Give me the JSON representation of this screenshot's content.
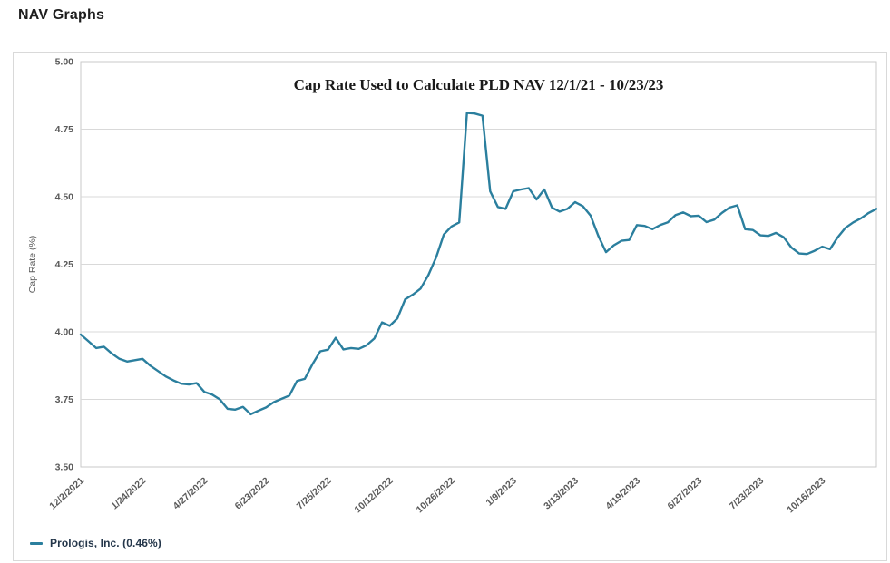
{
  "header": {
    "title": "NAV Graphs"
  },
  "colors": {
    "accent": "#2b7f9e",
    "grid": "#d9d9d9",
    "plot_border": "#c9c9c9",
    "axis_text": "#5a5a5a",
    "title_text": "#1a1a1a",
    "legend_text": "#24364a"
  },
  "chart_data": {
    "type": "line",
    "title": "Cap Rate Used to Calculate PLD NAV 12/1/21 - 10/23/23",
    "xlabel": "",
    "ylabel": "Cap Rate (%)",
    "ylim": [
      3.5,
      5.0
    ],
    "ytick_labels": [
      "5.00",
      "4.75",
      "4.50",
      "4.25",
      "4.00",
      "3.75",
      "3.50"
    ],
    "grid": "horizontal",
    "legend_position": "bottom-left",
    "x_tick_labels": [
      "12/2/2021",
      "1/24/2022",
      "4/27/2022",
      "6/23/2022",
      "7/25/2022",
      "10/12/2022",
      "10/26/2022",
      "1/9/2023",
      "3/13/2023",
      "4/19/2023",
      "6/27/2023",
      "7/23/2023",
      "10/16/2023"
    ],
    "x_tick_every": 8,
    "series": [
      {
        "name": "Prologis, Inc. (0.46%)",
        "color": "#2b7f9e",
        "values": [
          3.99,
          3.965,
          3.94,
          3.945,
          3.92,
          3.9,
          3.89,
          3.895,
          3.9,
          3.875,
          3.855,
          3.835,
          3.82,
          3.808,
          3.805,
          3.81,
          3.778,
          3.768,
          3.75,
          3.715,
          3.712,
          3.722,
          3.695,
          3.708,
          3.72,
          3.74,
          3.752,
          3.764,
          3.818,
          3.826,
          3.88,
          3.928,
          3.934,
          3.978,
          3.935,
          3.94,
          3.937,
          3.95,
          3.975,
          4.035,
          4.022,
          4.05,
          4.12,
          4.138,
          4.16,
          4.21,
          4.275,
          4.36,
          4.39,
          4.405,
          4.81,
          4.808,
          4.8,
          4.52,
          4.462,
          4.455,
          4.52,
          4.527,
          4.532,
          4.49,
          4.527,
          4.46,
          4.445,
          4.455,
          4.48,
          4.465,
          4.43,
          4.355,
          4.295,
          4.32,
          4.337,
          4.34,
          4.395,
          4.392,
          4.38,
          4.395,
          4.405,
          4.432,
          4.442,
          4.428,
          4.43,
          4.406,
          4.415,
          4.44,
          4.46,
          4.468,
          4.38,
          4.377,
          4.357,
          4.355,
          4.366,
          4.35,
          4.312,
          4.29,
          4.288,
          4.3,
          4.315,
          4.306,
          4.35,
          4.385,
          4.405,
          4.42,
          4.44,
          4.455
        ]
      }
    ]
  }
}
